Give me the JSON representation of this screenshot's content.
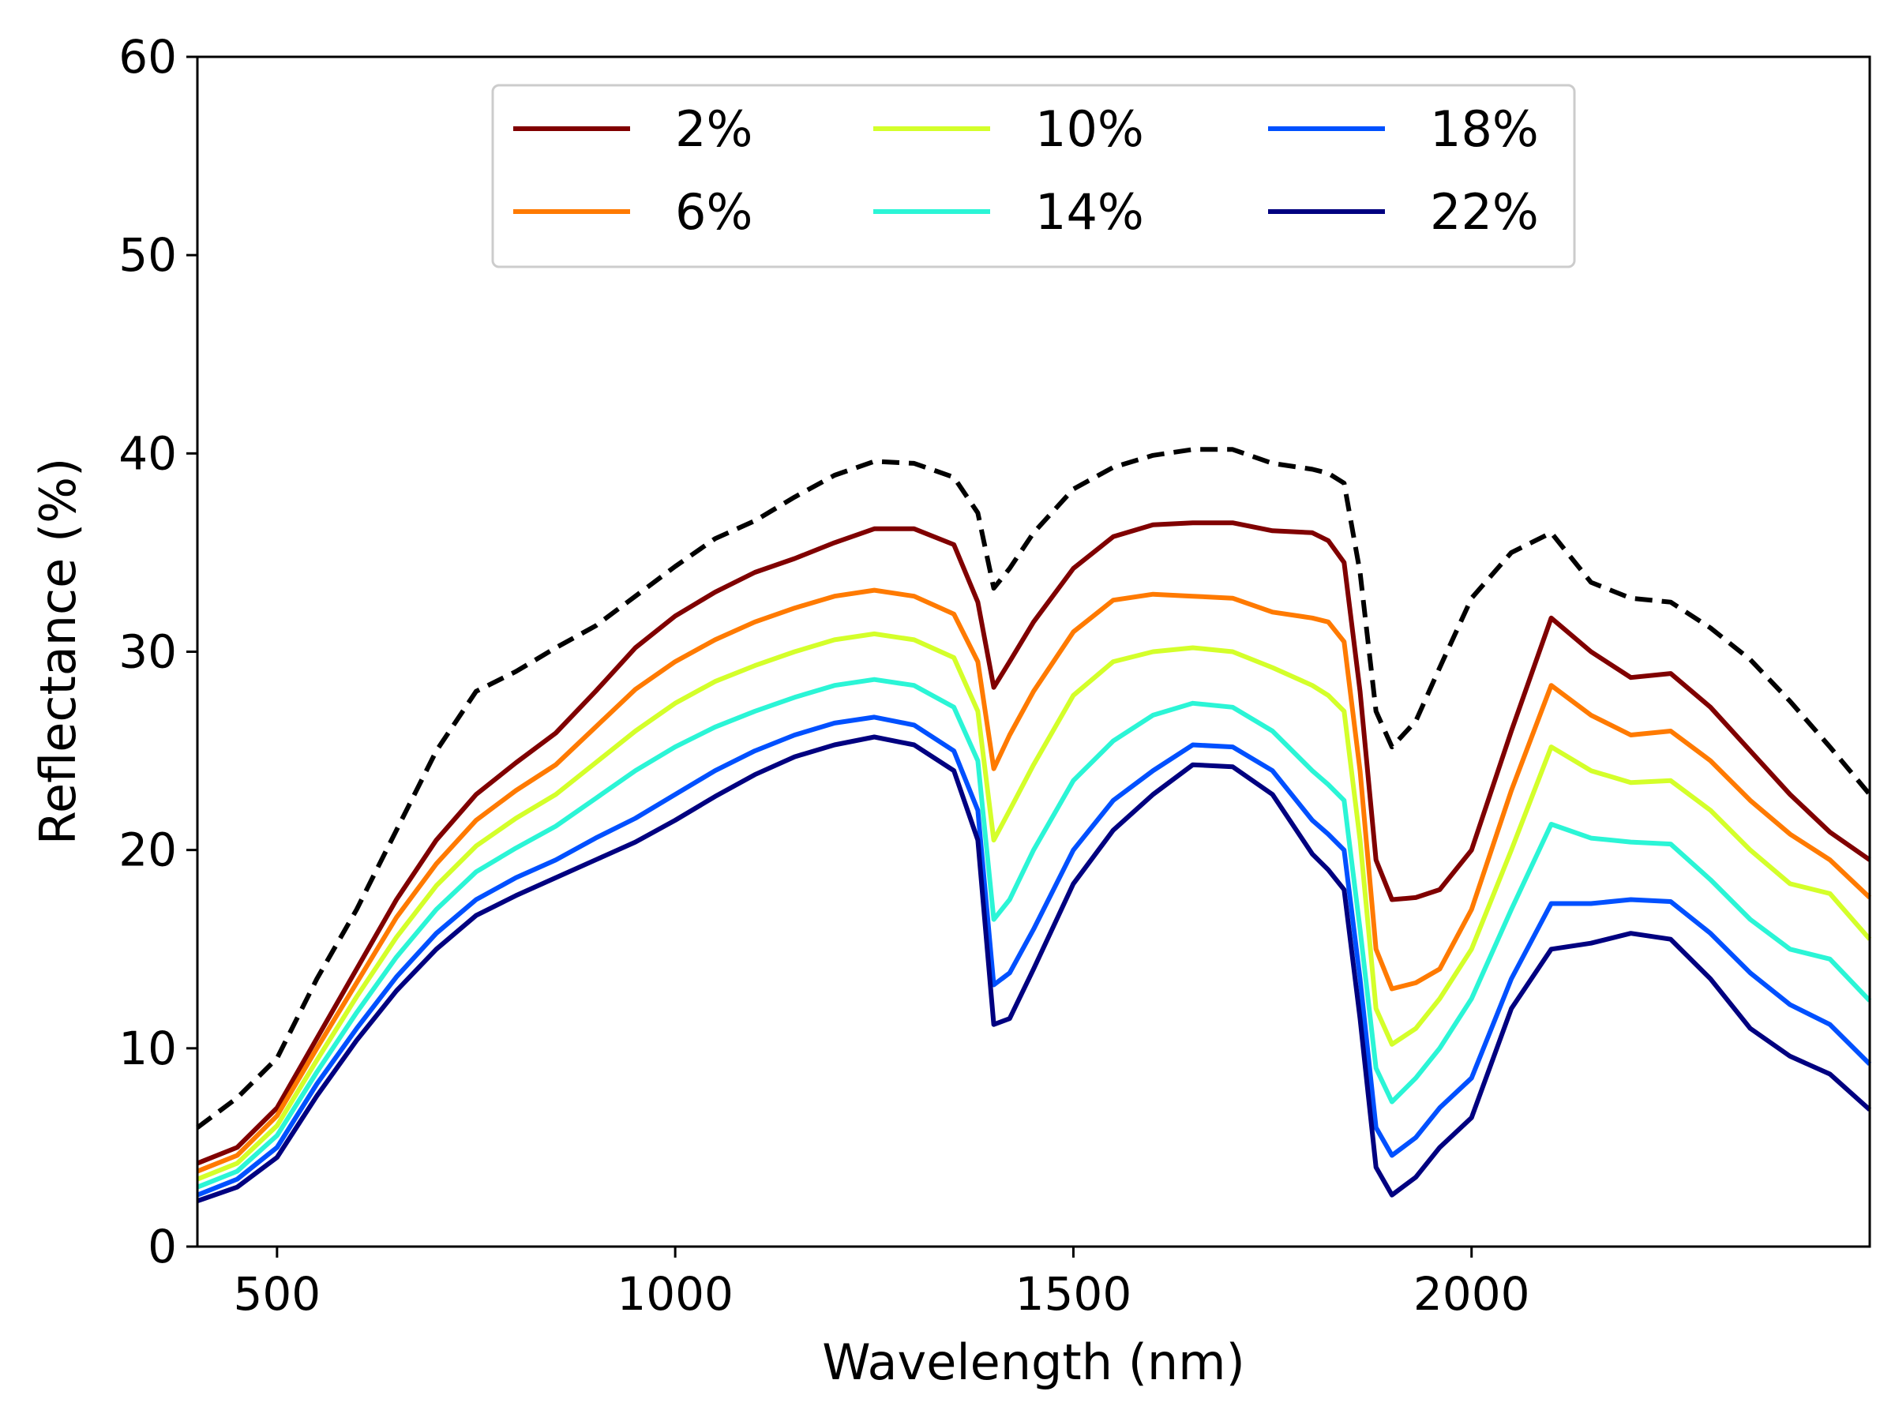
{
  "chart_data": {
    "type": "line",
    "title": "",
    "xlabel": "Wavelength (nm)",
    "ylabel": "Reflectance (%)",
    "xlim": [
      400,
      2500
    ],
    "ylim": [
      0,
      60
    ],
    "xticks": [
      500,
      1000,
      1500,
      2000
    ],
    "yticks": [
      0,
      10,
      20,
      30,
      40,
      50,
      60
    ],
    "grid": false,
    "legend": {
      "placement": "top-center",
      "columns": 3
    },
    "x": [
      400,
      450,
      500,
      550,
      600,
      650,
      700,
      750,
      800,
      850,
      900,
      950,
      1000,
      1050,
      1100,
      1150,
      1200,
      1250,
      1300,
      1350,
      1380,
      1400,
      1420,
      1450,
      1500,
      1550,
      1600,
      1650,
      1700,
      1750,
      1800,
      1820,
      1840,
      1860,
      1880,
      1900,
      1930,
      1960,
      2000,
      2050,
      2100,
      2150,
      2200,
      2250,
      2300,
      2350,
      2400,
      2450,
      2500
    ],
    "series": [
      {
        "name": "",
        "color": "#000000",
        "dashed": true,
        "values": [
          6.0,
          7.5,
          9.5,
          13.5,
          17.0,
          21.0,
          25.0,
          28.0,
          29.0,
          30.2,
          31.3,
          32.8,
          34.3,
          35.7,
          36.6,
          37.8,
          38.9,
          39.6,
          39.5,
          38.8,
          37.0,
          33.2,
          34.2,
          36.0,
          38.2,
          39.3,
          39.9,
          40.2,
          40.2,
          39.5,
          39.2,
          39.0,
          38.5,
          34.0,
          27.0,
          25.2,
          26.5,
          29.2,
          32.7,
          35.0,
          36.0,
          33.5,
          32.7,
          32.5,
          31.2,
          29.6,
          27.5,
          25.2,
          22.8
        ]
      },
      {
        "name": "2%",
        "color": "#800000",
        "values": [
          4.2,
          5.0,
          7.0,
          10.5,
          14.0,
          17.5,
          20.5,
          22.8,
          24.4,
          25.9,
          28.0,
          30.2,
          31.8,
          33.0,
          34.0,
          34.7,
          35.5,
          36.2,
          36.2,
          35.4,
          32.5,
          28.2,
          29.5,
          31.5,
          34.2,
          35.8,
          36.4,
          36.5,
          36.5,
          36.1,
          36.0,
          35.6,
          34.5,
          28.0,
          19.5,
          17.5,
          17.6,
          18.0,
          20.0,
          26.0,
          31.7,
          30.0,
          28.7,
          28.9,
          27.2,
          25.0,
          22.8,
          20.9,
          19.5
        ]
      },
      {
        "name": "6%",
        "color": "#ff7a00",
        "values": [
          3.8,
          4.6,
          6.6,
          10.0,
          13.3,
          16.6,
          19.3,
          21.5,
          23.0,
          24.3,
          26.2,
          28.1,
          29.5,
          30.6,
          31.5,
          32.2,
          32.8,
          33.1,
          32.8,
          31.9,
          29.5,
          24.1,
          25.8,
          28.0,
          31.0,
          32.6,
          32.9,
          32.8,
          32.7,
          32.0,
          31.7,
          31.5,
          30.5,
          24.0,
          15.0,
          13.0,
          13.3,
          14.0,
          17.0,
          23.0,
          28.3,
          26.8,
          25.8,
          26.0,
          24.5,
          22.5,
          20.8,
          19.5,
          17.6
        ]
      },
      {
        "name": "10%",
        "color": "#d4ff2a",
        "values": [
          3.4,
          4.2,
          6.1,
          9.4,
          12.6,
          15.6,
          18.2,
          20.2,
          21.6,
          22.8,
          24.4,
          26.0,
          27.4,
          28.5,
          29.3,
          30.0,
          30.6,
          30.9,
          30.6,
          29.7,
          27.0,
          20.5,
          22.0,
          24.3,
          27.8,
          29.5,
          30.0,
          30.2,
          30.0,
          29.2,
          28.3,
          27.8,
          27.0,
          20.5,
          12.0,
          10.2,
          11.0,
          12.5,
          15.0,
          20.0,
          25.2,
          24.0,
          23.4,
          23.5,
          22.0,
          20.0,
          18.3,
          17.8,
          15.5
        ]
      },
      {
        "name": "14%",
        "color": "#2bf5d6",
        "values": [
          3.0,
          3.8,
          5.6,
          8.8,
          11.8,
          14.6,
          17.0,
          18.9,
          20.1,
          21.2,
          22.6,
          24.0,
          25.2,
          26.2,
          27.0,
          27.7,
          28.3,
          28.6,
          28.3,
          27.2,
          24.5,
          16.5,
          17.5,
          20.0,
          23.5,
          25.5,
          26.8,
          27.4,
          27.2,
          26.0,
          24.0,
          23.3,
          22.5,
          16.0,
          9.0,
          7.3,
          8.5,
          10.0,
          12.5,
          17.0,
          21.3,
          20.6,
          20.4,
          20.3,
          18.5,
          16.5,
          15.0,
          14.5,
          12.4
        ]
      },
      {
        "name": "18%",
        "color": "#0050ff",
        "values": [
          2.6,
          3.4,
          5.0,
          8.2,
          11.0,
          13.6,
          15.8,
          17.5,
          18.6,
          19.5,
          20.6,
          21.6,
          22.8,
          24.0,
          25.0,
          25.8,
          26.4,
          26.7,
          26.3,
          25.0,
          22.0,
          13.2,
          13.8,
          16.0,
          20.0,
          22.5,
          24.0,
          25.3,
          25.2,
          24.0,
          21.5,
          20.8,
          20.0,
          13.5,
          6.0,
          4.6,
          5.5,
          7.0,
          8.5,
          13.5,
          17.3,
          17.3,
          17.5,
          17.4,
          15.8,
          13.8,
          12.2,
          11.2,
          9.2
        ]
      },
      {
        "name": "22%",
        "color": "#000080",
        "values": [
          2.3,
          3.0,
          4.5,
          7.6,
          10.4,
          12.9,
          15.0,
          16.7,
          17.7,
          18.6,
          19.5,
          20.4,
          21.5,
          22.7,
          23.8,
          24.7,
          25.3,
          25.7,
          25.3,
          24.0,
          20.5,
          11.2,
          11.5,
          14.0,
          18.3,
          21.0,
          22.8,
          24.3,
          24.2,
          22.8,
          19.8,
          19.0,
          18.0,
          11.5,
          4.0,
          2.6,
          3.5,
          5.0,
          6.5,
          12.0,
          15.0,
          15.3,
          15.8,
          15.5,
          13.5,
          11.0,
          9.6,
          8.7,
          6.9
        ]
      }
    ]
  }
}
